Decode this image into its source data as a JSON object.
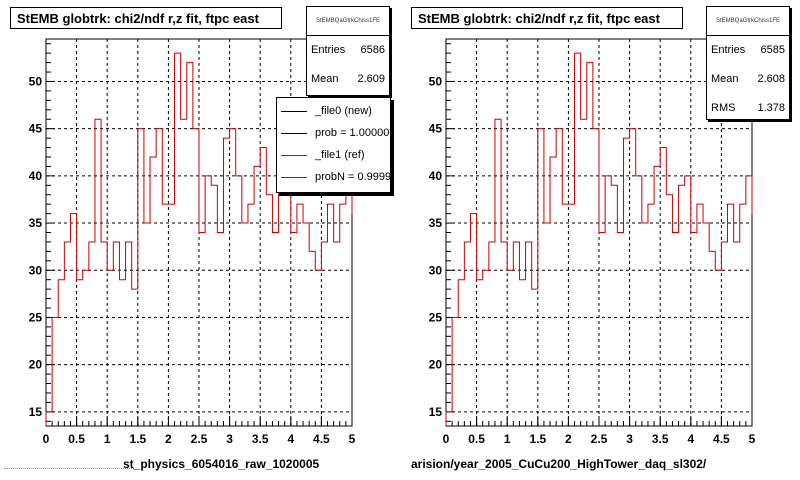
{
  "chart_data": [
    {
      "type": "line",
      "title": "StEMB globtrk: chi2/ndf r,z fit, ftpc east",
      "xlabel": "st_physics_6054016_raw_1020005",
      "xlim": [
        0,
        5
      ],
      "ylim": [
        13.5,
        54.5
      ],
      "grid": true,
      "x_ticks": [
        "0",
        "0.5",
        "1",
        "1.5",
        "2",
        "2.5",
        "3",
        "3.5",
        "4",
        "4.5",
        "5"
      ],
      "y_ticks": [
        "15",
        "20",
        "25",
        "30",
        "35",
        "40",
        "45",
        "50"
      ],
      "bin_width": 0.1,
      "series": [
        {
          "name": "_file1 (ref)",
          "color": "#cc0000",
          "values": [
            15,
            25,
            29,
            33,
            36,
            29,
            30,
            33,
            46,
            33,
            30,
            33,
            29,
            33,
            28,
            45,
            35,
            42,
            45,
            37,
            37,
            53,
            46,
            52,
            45,
            34,
            40,
            39,
            34,
            44,
            45,
            40,
            35,
            37,
            41,
            43,
            38,
            34,
            39,
            40,
            34,
            37,
            35,
            32,
            30,
            33,
            37,
            33,
            37,
            40,
            36
          ]
        }
      ],
      "stats": {
        "header": "StEMBQaGtrkChiss1FE",
        "entries_label": "Entries",
        "entries": "6586",
        "mean_label": "Mean",
        "mean": "2.609"
      },
      "legend": [
        {
          "label": "_file0 (new)",
          "color": "#000000"
        },
        {
          "label": "prob = 1.000000",
          "color": "#000000"
        },
        {
          "label": "_file1 (ref)",
          "color": "#cc0000"
        },
        {
          "label": "probN = 0.999915",
          "color": "#cc0000"
        }
      ]
    },
    {
      "type": "line",
      "title": "StEMB globtrk: chi2/ndf r,z fit, ftpc east",
      "xlabel": "arision/year_2005_CuCu200_HighTower_daq_sl302/",
      "xlim": [
        0,
        5
      ],
      "ylim": [
        13.5,
        54.5
      ],
      "grid": true,
      "x_ticks": [
        "0",
        "0.5",
        "1",
        "1.5",
        "2",
        "2.5",
        "3",
        "3.5",
        "4",
        "4.5",
        "5"
      ],
      "y_ticks": [
        "15",
        "20",
        "25",
        "30",
        "35",
        "40",
        "45",
        "50"
      ],
      "bin_width": 0.1,
      "series": [
        {
          "color": "#cc0000",
          "values": [
            15,
            25,
            29,
            33,
            36,
            29,
            30,
            33,
            46,
            33,
            30,
            33,
            29,
            33,
            28,
            45,
            35,
            42,
            45,
            37,
            37,
            53,
            46,
            52,
            45,
            34,
            40,
            39,
            34,
            44,
            45,
            40,
            35,
            37,
            41,
            43,
            38,
            34,
            39,
            40,
            34,
            37,
            35,
            32,
            30,
            33,
            37,
            33,
            37,
            40,
            36
          ]
        }
      ],
      "stats": {
        "header": "StEMBQaGtrkChiss1FE",
        "entries_label": "Entries",
        "entries": "6585",
        "mean_label": "Mean",
        "mean": "2.608",
        "rms_label": "RMS",
        "rms": "1.378"
      }
    }
  ]
}
